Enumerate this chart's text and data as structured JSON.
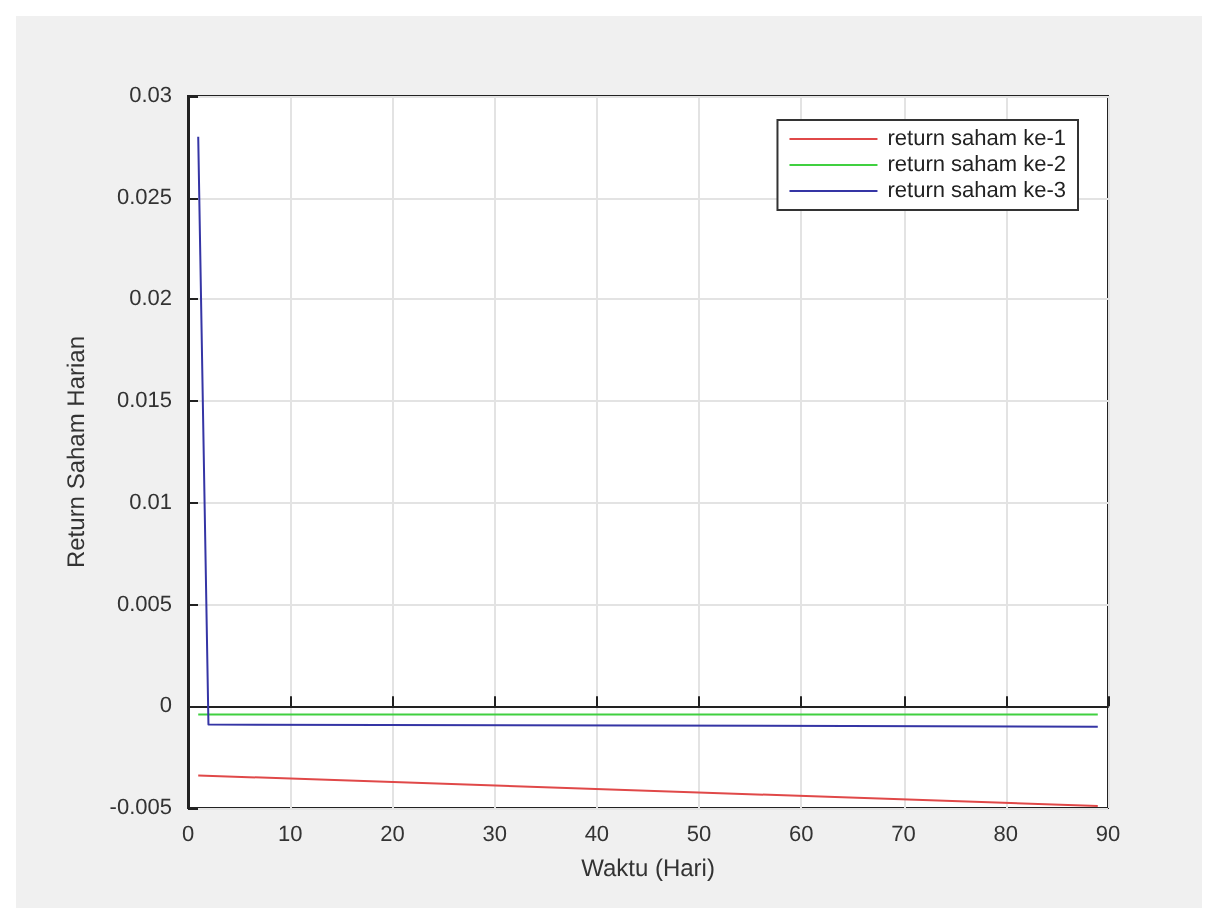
{
  "chart_data": {
    "type": "line",
    "xlabel": "Waktu (Hari)",
    "ylabel": "Return Saham Harian",
    "xlim": [
      0,
      90
    ],
    "xticks": [
      0,
      10,
      20,
      30,
      40,
      50,
      60,
      70,
      80,
      90
    ],
    "ylim": [
      -0.005,
      0.03
    ],
    "yticks": [
      -0.005,
      0,
      0.005,
      0.01,
      0.015,
      0.02,
      0.025,
      0.03
    ],
    "grid": true,
    "legend": "top right",
    "marker": "none",
    "line_style": "solid",
    "series": [
      {
        "name": "return saham ke-1",
        "color": "#e04848",
        "x": [
          1,
          89
        ],
        "values": [
          -0.0034,
          -0.0049
        ]
      },
      {
        "name": "return saham ke-2",
        "color": "#40d040",
        "x": [
          1,
          89
        ],
        "values": [
          -0.0004,
          -0.0004
        ]
      },
      {
        "name": "return saham ke-3",
        "color": "#3535a5",
        "x": [
          1,
          2,
          89
        ],
        "values": [
          0.028,
          -0.0009,
          -0.001
        ]
      }
    ]
  }
}
